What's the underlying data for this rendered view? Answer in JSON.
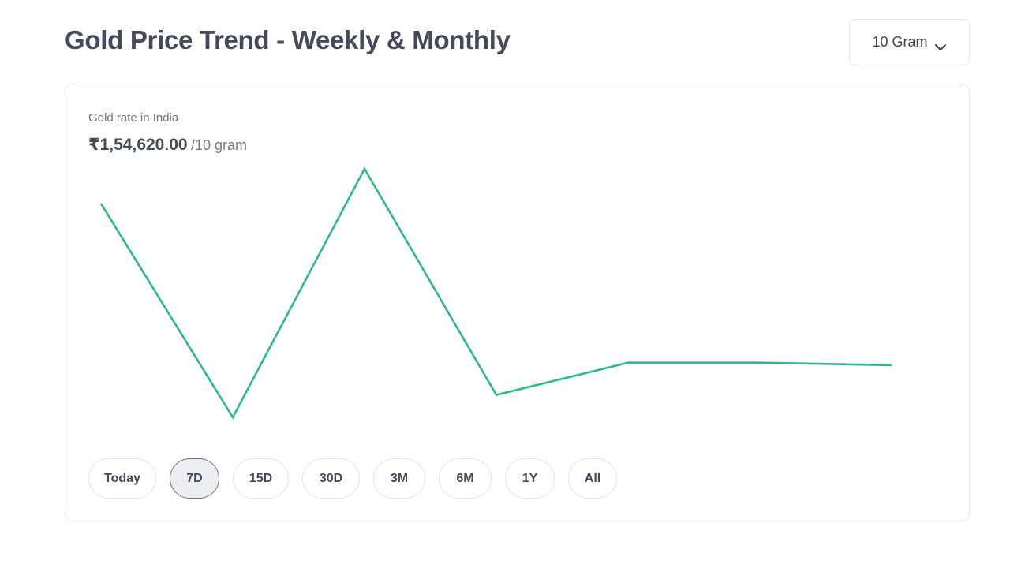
{
  "header": {
    "title": "Gold Price Trend - Weekly & Monthly",
    "unit_select": {
      "value": "10 Gram",
      "icon": "chevron-down-icon"
    }
  },
  "card": {
    "label": "Gold rate in India",
    "price": "₹1,54,620.00",
    "price_unit": "/10 gram"
  },
  "range_tabs": [
    {
      "label": "Today",
      "active": false
    },
    {
      "label": "7D",
      "active": true
    },
    {
      "label": "15D",
      "active": false
    },
    {
      "label": "30D",
      "active": false
    },
    {
      "label": "3M",
      "active": false
    },
    {
      "label": "6M",
      "active": false
    },
    {
      "label": "1Y",
      "active": false
    },
    {
      "label": "All",
      "active": false
    }
  ],
  "colors": {
    "line": "#2bb894",
    "title": "#454a5a",
    "active_tab_bg": "#ecedf1"
  },
  "chart_data": {
    "type": "line",
    "title": "",
    "xlabel": "",
    "ylabel": "",
    "grid": false,
    "axes_visible": false,
    "series": [
      {
        "values": [
          0.86,
          0.0,
          1.0,
          0.09,
          0.22,
          0.22,
          0.21
        ]
      }
    ]
  }
}
